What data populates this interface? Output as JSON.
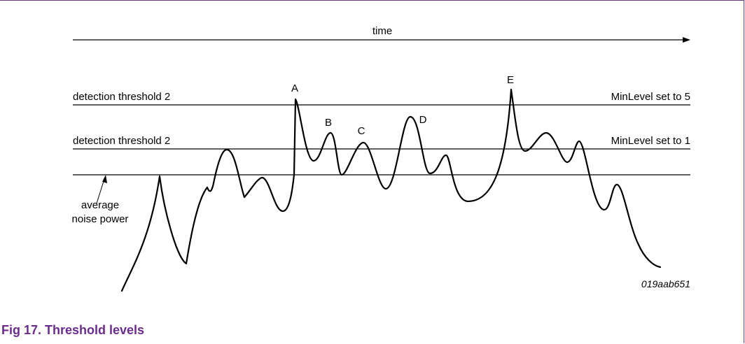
{
  "diagram": {
    "time_label": "time",
    "threshold_upper_label": "detection threshold 2",
    "threshold_lower_label": "detection threshold 2",
    "minlevel_upper_label": "MinLevel set to 5",
    "minlevel_lower_label": "MinLevel set to 1",
    "noise_label_line1": "average",
    "noise_label_line2": "noise power",
    "peak_a": "A",
    "peak_b": "B",
    "peak_c": "C",
    "peak_d": "D",
    "peak_e": "E",
    "figure_ref": "019aab651"
  },
  "caption": "Fig 17. Threshold levels",
  "colors": {
    "caption": "#6b2c8c",
    "frame": "#6b3a8c",
    "lines": "#000000"
  }
}
